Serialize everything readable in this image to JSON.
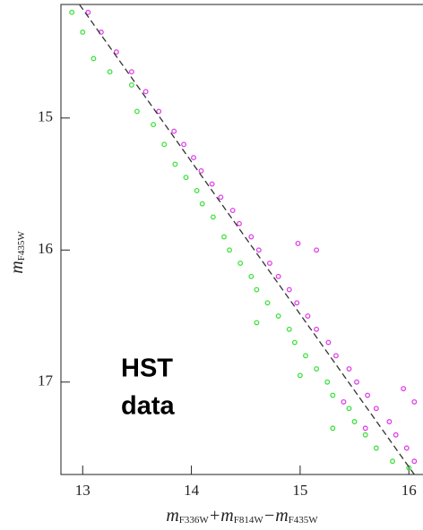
{
  "chart_data": {
    "type": "scatter",
    "xlabel_parts": [
      {
        "text": "m",
        "sub": "F336W"
      },
      {
        "text": "+m",
        "sub": "F814W"
      },
      {
        "text": "−m",
        "sub": "F435W"
      }
    ],
    "ylabel": {
      "text": "m",
      "sub": "F435W"
    },
    "annotation": [
      "HST",
      "data"
    ],
    "xlim": [
      12.8,
      16.13
    ],
    "ylim": [
      17.7,
      14.14
    ],
    "xticks": [
      13,
      14,
      15,
      16
    ],
    "yticks": [
      15,
      16,
      17
    ],
    "series": [
      {
        "color": "#e040e8",
        "marker": "point",
        "x": [
          13.05,
          13.17,
          13.31,
          13.45,
          13.58,
          13.7,
          13.84,
          13.93,
          14.02,
          14.09,
          14.19,
          14.27,
          14.38,
          14.44,
          14.55,
          14.62,
          14.98,
          15.15,
          14.72,
          14.8,
          14.9,
          14.97,
          15.07,
          15.15,
          15.26,
          15.33,
          15.45,
          15.52,
          15.62,
          15.7,
          15.82,
          15.88,
          15.98,
          16.05,
          15.95,
          16.05,
          15.4,
          15.6
        ],
        "values": [
          14.2,
          14.35,
          14.5,
          14.65,
          14.8,
          14.95,
          15.1,
          15.2,
          15.3,
          15.4,
          15.5,
          15.6,
          15.7,
          15.8,
          15.9,
          16.0,
          15.95,
          16.0,
          16.1,
          16.2,
          16.3,
          16.4,
          16.5,
          16.6,
          16.7,
          16.8,
          16.9,
          17.0,
          17.1,
          17.2,
          17.3,
          17.4,
          17.5,
          17.6,
          17.05,
          17.15,
          17.15,
          17.35
        ]
      },
      {
        "color": "#40e040",
        "marker": "point",
        "x": [
          12.9,
          13.0,
          13.1,
          13.25,
          13.45,
          13.5,
          13.65,
          13.75,
          13.85,
          13.95,
          14.05,
          14.1,
          14.2,
          14.3,
          14.35,
          14.45,
          14.55,
          14.6,
          14.7,
          14.8,
          14.9,
          14.95,
          15.05,
          15.15,
          15.25,
          15.3,
          15.45,
          15.5,
          15.6,
          15.7,
          15.85,
          16.0,
          14.6,
          15.0,
          15.3
        ],
        "values": [
          14.2,
          14.35,
          14.55,
          14.65,
          14.75,
          14.95,
          15.05,
          15.2,
          15.35,
          15.45,
          15.55,
          15.65,
          15.75,
          15.9,
          16.0,
          16.1,
          16.2,
          16.3,
          16.4,
          16.5,
          16.6,
          16.7,
          16.8,
          16.9,
          17.0,
          17.1,
          17.2,
          17.3,
          17.4,
          17.5,
          17.6,
          17.65,
          16.55,
          16.95,
          17.35
        ]
      },
      {
        "color": "#333333",
        "marker": "dashed-line",
        "x": [
          12.97,
          16.05
        ],
        "values": [
          14.14,
          17.7
        ]
      }
    ]
  }
}
